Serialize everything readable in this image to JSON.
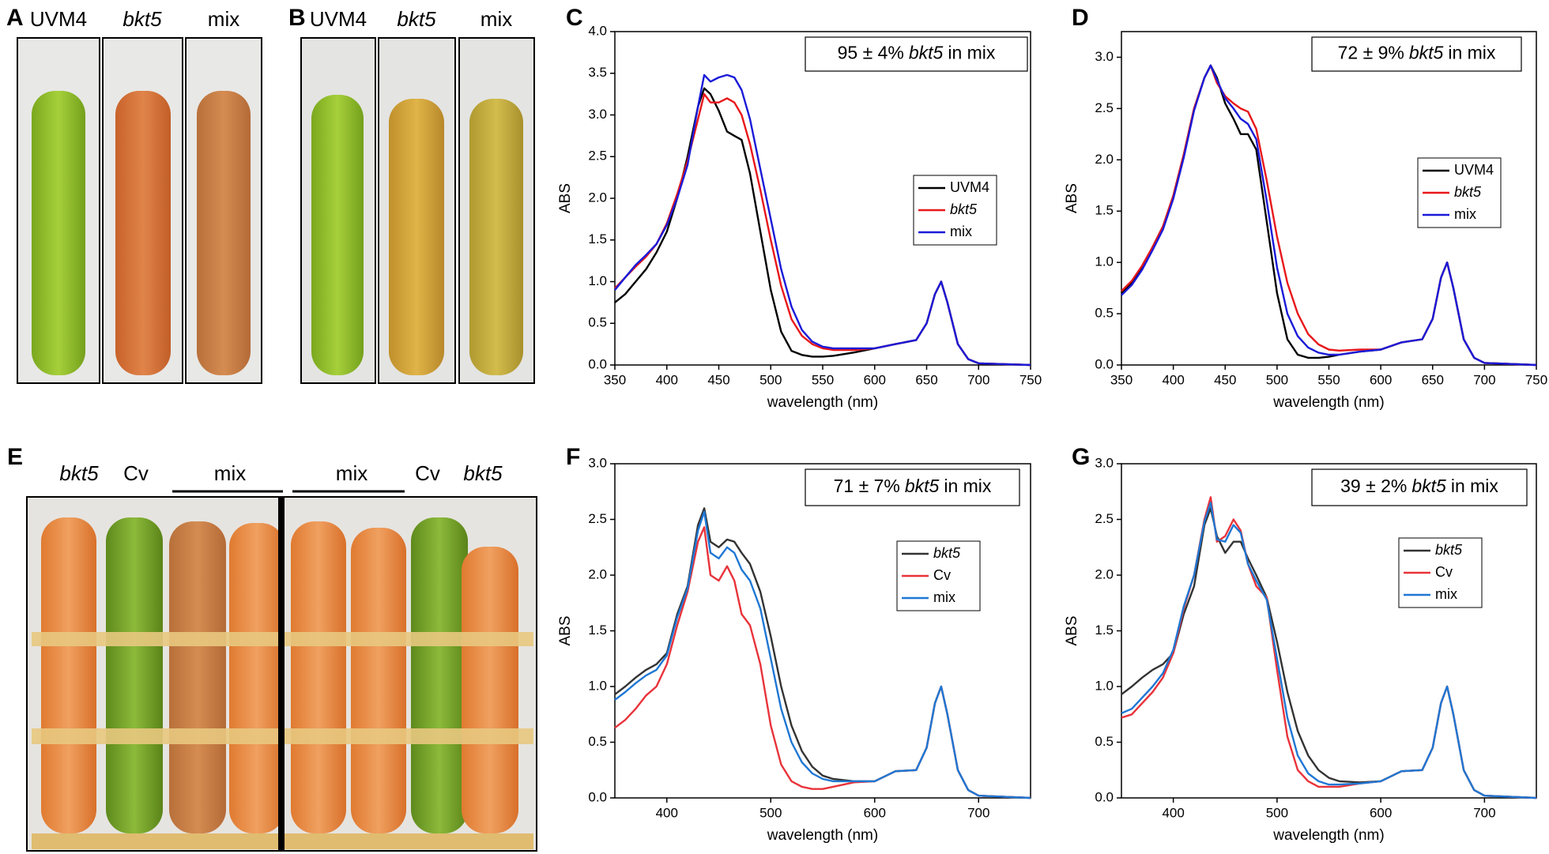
{
  "figure": {
    "panel_letters": [
      "A",
      "B",
      "C",
      "D",
      "E",
      "F",
      "G"
    ],
    "photo_A_labels": [
      "UVM4",
      "bkt5",
      "mix"
    ],
    "photo_B_labels": [
      "UVM4",
      "bkt5",
      "mix"
    ],
    "photo_E_labels": [
      "bkt5",
      "Cv",
      "mix",
      "mix",
      "Cv",
      "bkt5"
    ]
  },
  "chart_data": [
    {
      "type": "line",
      "x_label": "wavelength (nm)",
      "y_label": "ABS",
      "annotation": {
        "prefix": "95 ± 4%",
        "strain": "bkt5",
        "suffix": "in mix"
      },
      "xlim": [
        350,
        750
      ],
      "xticks": [
        350,
        400,
        450,
        500,
        550,
        600,
        650,
        700,
        750
      ],
      "ylim": [
        0,
        4
      ],
      "yticks": [
        {
          "value": 0,
          "label": "0.0"
        },
        {
          "value": 0.5,
          "label": "0.5"
        },
        {
          "value": 1,
          "label": "1.0"
        },
        {
          "value": 1.5,
          "label": "1.5"
        },
        {
          "value": 2,
          "label": "2.0"
        },
        {
          "value": 2.5,
          "label": "2.5"
        },
        {
          "value": 3,
          "label": "3.0"
        },
        {
          "value": 3.5,
          "label": "3.5"
        },
        {
          "value": 4,
          "label": "4.0"
        }
      ],
      "legend": "center right",
      "x": [
        350,
        360,
        370,
        380,
        390,
        400,
        410,
        420,
        430,
        436,
        442,
        450,
        458,
        465,
        472,
        480,
        490,
        500,
        510,
        520,
        530,
        540,
        550,
        560,
        580,
        600,
        620,
        640,
        650,
        658,
        664,
        670,
        680,
        690,
        700,
        750
      ],
      "series": [
        {
          "name": "UVM4",
          "color": "#000000",
          "italic": false,
          "values": [
            0.75,
            0.85,
            1.0,
            1.15,
            1.35,
            1.6,
            2.0,
            2.5,
            3.1,
            3.32,
            3.25,
            3.05,
            2.8,
            2.75,
            2.7,
            2.3,
            1.6,
            0.9,
            0.4,
            0.17,
            0.12,
            0.1,
            0.1,
            0.11,
            0.15,
            0.2,
            0.25,
            0.3,
            0.5,
            0.85,
            1.0,
            0.75,
            0.25,
            0.07,
            0.02,
            0.0
          ]
        },
        {
          "name": "bkt5",
          "color": "#e8171b",
          "italic": true,
          "values": [
            0.92,
            1.05,
            1.18,
            1.3,
            1.45,
            1.7,
            2.05,
            2.45,
            2.95,
            3.25,
            3.15,
            3.15,
            3.2,
            3.15,
            3.0,
            2.65,
            2.1,
            1.5,
            0.95,
            0.55,
            0.35,
            0.25,
            0.2,
            0.18,
            0.18,
            0.2,
            0.25,
            0.3,
            0.5,
            0.85,
            1.0,
            0.75,
            0.25,
            0.07,
            0.02,
            0.0
          ]
        },
        {
          "name": "mix",
          "color": "#1a1ad8",
          "italic": false,
          "values": [
            0.9,
            1.05,
            1.2,
            1.32,
            1.45,
            1.68,
            2.0,
            2.4,
            3.1,
            3.48,
            3.4,
            3.45,
            3.48,
            3.45,
            3.3,
            2.95,
            2.35,
            1.75,
            1.15,
            0.7,
            0.42,
            0.28,
            0.22,
            0.2,
            0.2,
            0.2,
            0.25,
            0.3,
            0.5,
            0.85,
            1.0,
            0.75,
            0.25,
            0.07,
            0.02,
            0.0
          ]
        }
      ]
    },
    {
      "type": "line",
      "x_label": "wavelength (nm)",
      "y_label": "ABS",
      "annotation": {
        "prefix": "72 ± 9%",
        "strain": "bkt5",
        "suffix": "in mix"
      },
      "xlim": [
        350,
        750
      ],
      "xticks": [
        350,
        400,
        450,
        500,
        550,
        600,
        650,
        700,
        750
      ],
      "ylim": [
        0,
        3.25
      ],
      "yticks": [
        {
          "value": 0,
          "label": "0.0"
        },
        {
          "value": 0.5,
          "label": "0.5"
        },
        {
          "value": 1,
          "label": "1.0"
        },
        {
          "value": 1.5,
          "label": "1.5"
        },
        {
          "value": 2,
          "label": "2.0"
        },
        {
          "value": 2.5,
          "label": "2.5"
        },
        {
          "value": 3,
          "label": "3.0"
        }
      ],
      "legend": "center right",
      "x": [
        350,
        360,
        370,
        380,
        390,
        400,
        410,
        420,
        430,
        436,
        442,
        450,
        458,
        465,
        472,
        480,
        490,
        500,
        510,
        520,
        530,
        540,
        550,
        560,
        580,
        600,
        620,
        640,
        650,
        658,
        664,
        670,
        680,
        690,
        700,
        750
      ],
      "series": [
        {
          "name": "UVM4",
          "color": "#000000",
          "italic": false,
          "values": [
            0.7,
            0.8,
            0.95,
            1.15,
            1.35,
            1.65,
            2.05,
            2.5,
            2.8,
            2.92,
            2.8,
            2.55,
            2.4,
            2.25,
            2.25,
            2.1,
            1.4,
            0.7,
            0.25,
            0.1,
            0.07,
            0.07,
            0.08,
            0.1,
            0.13,
            0.15,
            0.22,
            0.25,
            0.45,
            0.85,
            1.0,
            0.75,
            0.25,
            0.07,
            0.02,
            0.0
          ]
        },
        {
          "name": "bkt5",
          "color": "#e8171b",
          "italic": true,
          "values": [
            0.72,
            0.82,
            0.97,
            1.15,
            1.35,
            1.65,
            2.05,
            2.5,
            2.8,
            2.92,
            2.75,
            2.62,
            2.55,
            2.5,
            2.47,
            2.3,
            1.8,
            1.25,
            0.8,
            0.5,
            0.3,
            0.2,
            0.15,
            0.14,
            0.15,
            0.15,
            0.22,
            0.25,
            0.45,
            0.85,
            1.0,
            0.75,
            0.25,
            0.07,
            0.02,
            0.0
          ]
        },
        {
          "name": "mix",
          "color": "#1a1ad8",
          "italic": false,
          "values": [
            0.68,
            0.78,
            0.93,
            1.12,
            1.32,
            1.62,
            2.02,
            2.48,
            2.8,
            2.92,
            2.78,
            2.6,
            2.5,
            2.4,
            2.35,
            2.2,
            1.6,
            0.95,
            0.5,
            0.28,
            0.17,
            0.12,
            0.1,
            0.1,
            0.13,
            0.15,
            0.22,
            0.25,
            0.45,
            0.85,
            1.0,
            0.75,
            0.25,
            0.07,
            0.02,
            0.0
          ]
        }
      ]
    },
    {
      "type": "line",
      "x_label": "wavelength (nm)",
      "y_label": "ABS",
      "annotation": {
        "prefix": "71 ± 7%",
        "strain": "bkt5",
        "suffix": "in mix"
      },
      "xlim": [
        350,
        750
      ],
      "xticks": [
        400,
        500,
        600,
        700
      ],
      "ylim": [
        0,
        3
      ],
      "yticks": [
        {
          "value": 0,
          "label": "0.0"
        },
        {
          "value": 0.5,
          "label": "0.5"
        },
        {
          "value": 1,
          "label": "1.0"
        },
        {
          "value": 1.5,
          "label": "1.5"
        },
        {
          "value": 2,
          "label": "2.0"
        },
        {
          "value": 2.5,
          "label": "2.5"
        },
        {
          "value": 3,
          "label": "3.0"
        }
      ],
      "legend": "center right",
      "x": [
        350,
        360,
        370,
        380,
        390,
        400,
        410,
        420,
        430,
        436,
        442,
        450,
        458,
        465,
        472,
        480,
        490,
        500,
        510,
        520,
        530,
        540,
        550,
        560,
        580,
        600,
        620,
        640,
        650,
        658,
        664,
        670,
        680,
        690,
        700,
        750
      ],
      "series": [
        {
          "name": "bkt5",
          "color": "#333333",
          "italic": true,
          "values": [
            0.93,
            1.0,
            1.08,
            1.15,
            1.2,
            1.3,
            1.65,
            1.9,
            2.45,
            2.6,
            2.3,
            2.25,
            2.32,
            2.3,
            2.2,
            2.1,
            1.85,
            1.45,
            1.0,
            0.65,
            0.42,
            0.28,
            0.2,
            0.17,
            0.15,
            0.15,
            0.24,
            0.25,
            0.45,
            0.85,
            1.0,
            0.75,
            0.25,
            0.07,
            0.02,
            0.0
          ]
        },
        {
          "name": "Cv",
          "color": "#e8333a",
          "italic": false,
          "values": [
            0.63,
            0.7,
            0.8,
            0.92,
            1.0,
            1.2,
            1.55,
            1.85,
            2.3,
            2.43,
            2.0,
            1.95,
            2.08,
            1.95,
            1.65,
            1.55,
            1.2,
            0.65,
            0.3,
            0.15,
            0.1,
            0.08,
            0.08,
            0.1,
            0.14,
            0.15,
            0.24,
            0.25,
            0.45,
            0.85,
            1.0,
            0.75,
            0.25,
            0.07,
            0.02,
            0.0
          ]
        },
        {
          "name": "mix",
          "color": "#1f77d4",
          "italic": false,
          "values": [
            0.88,
            0.95,
            1.03,
            1.1,
            1.15,
            1.28,
            1.62,
            1.88,
            2.4,
            2.57,
            2.2,
            2.15,
            2.25,
            2.2,
            2.05,
            1.95,
            1.7,
            1.25,
            0.8,
            0.5,
            0.32,
            0.22,
            0.17,
            0.15,
            0.15,
            0.15,
            0.24,
            0.25,
            0.45,
            0.85,
            1.0,
            0.75,
            0.25,
            0.07,
            0.02,
            0.0
          ]
        }
      ]
    },
    {
      "type": "line",
      "x_label": "wavelength (nm)",
      "y_label": "ABS",
      "annotation": {
        "prefix": "39 ± 2%",
        "strain": "bkt5",
        "suffix": "in mix"
      },
      "xlim": [
        350,
        750
      ],
      "xticks": [
        400,
        500,
        600,
        700
      ],
      "ylim": [
        0,
        3
      ],
      "yticks": [
        {
          "value": 0,
          "label": "0.0"
        },
        {
          "value": 0.5,
          "label": "0.5"
        },
        {
          "value": 1,
          "label": "1.0"
        },
        {
          "value": 1.5,
          "label": "1.5"
        },
        {
          "value": 2,
          "label": "2.0"
        },
        {
          "value": 2.5,
          "label": "2.5"
        },
        {
          "value": 3,
          "label": "3.0"
        }
      ],
      "legend": "center right",
      "x": [
        350,
        360,
        370,
        380,
        390,
        400,
        410,
        420,
        430,
        436,
        442,
        450,
        458,
        465,
        472,
        480,
        490,
        500,
        510,
        520,
        530,
        540,
        550,
        560,
        580,
        600,
        620,
        640,
        650,
        658,
        664,
        670,
        680,
        690,
        700,
        750
      ],
      "series": [
        {
          "name": "bkt5",
          "color": "#333333",
          "italic": true,
          "values": [
            0.93,
            1.0,
            1.08,
            1.15,
            1.2,
            1.3,
            1.65,
            1.9,
            2.45,
            2.6,
            2.35,
            2.2,
            2.3,
            2.3,
            2.15,
            2.0,
            1.8,
            1.4,
            0.95,
            0.6,
            0.38,
            0.25,
            0.18,
            0.15,
            0.14,
            0.15,
            0.24,
            0.25,
            0.45,
            0.85,
            1.0,
            0.75,
            0.25,
            0.07,
            0.02,
            0.0
          ]
        },
        {
          "name": "Cv",
          "color": "#e8333a",
          "italic": false,
          "values": [
            0.72,
            0.75,
            0.85,
            0.95,
            1.08,
            1.3,
            1.7,
            2.0,
            2.5,
            2.7,
            2.3,
            2.35,
            2.5,
            2.4,
            2.1,
            1.9,
            1.8,
            1.15,
            0.55,
            0.25,
            0.15,
            0.1,
            0.1,
            0.1,
            0.13,
            0.15,
            0.24,
            0.25,
            0.45,
            0.85,
            1.0,
            0.75,
            0.25,
            0.07,
            0.02,
            0.0
          ]
        },
        {
          "name": "mix",
          "color": "#1f77d4",
          "italic": false,
          "values": [
            0.76,
            0.8,
            0.9,
            1.0,
            1.12,
            1.33,
            1.72,
            2.0,
            2.48,
            2.65,
            2.32,
            2.3,
            2.45,
            2.38,
            2.1,
            1.95,
            1.78,
            1.25,
            0.72,
            0.38,
            0.22,
            0.15,
            0.12,
            0.12,
            0.13,
            0.15,
            0.24,
            0.25,
            0.45,
            0.85,
            1.0,
            0.75,
            0.25,
            0.07,
            0.02,
            0.0
          ]
        }
      ]
    }
  ]
}
